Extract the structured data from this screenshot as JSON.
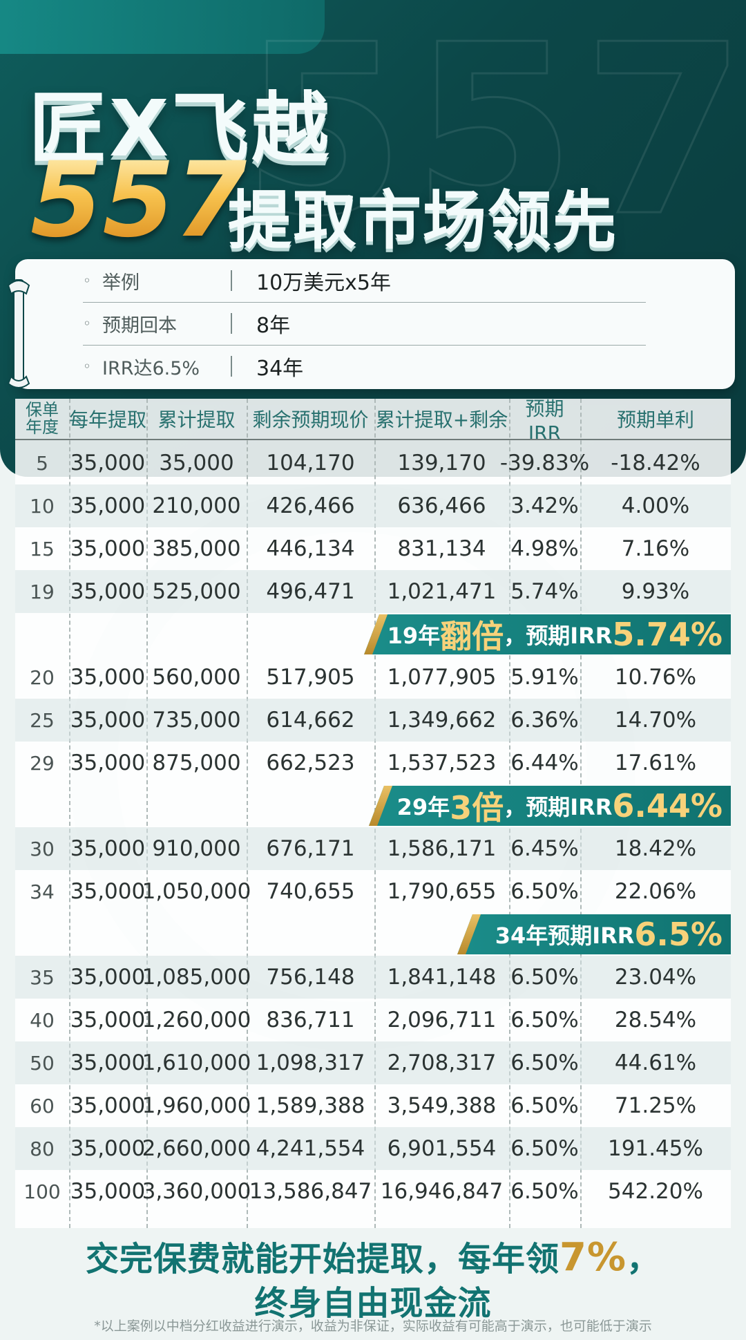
{
  "hero": {
    "bg_number": "557",
    "title_line1": "匠X飞越",
    "title_number": "557",
    "title_line2": "提取市场领先"
  },
  "info": [
    {
      "label": "举例",
      "value": "10万美元x5年"
    },
    {
      "label": "预期回本",
      "value": "8年"
    },
    {
      "label": "IRR达6.5%",
      "value": "34年"
    }
  ],
  "table": {
    "headers": [
      "保单\n年度",
      "每年提取",
      "累计提取",
      "剩余预期现价",
      "累计提取+剩余",
      "预期IRR",
      "预期单利"
    ],
    "header_year_top": "保单",
    "header_year_bottom": "年度",
    "rows": [
      [
        "5",
        "35,000",
        "35,000",
        "104,170",
        "139,170",
        "-39.83%",
        "-18.42%"
      ],
      [
        "10",
        "35,000",
        "210,000",
        "426,466",
        "636,466",
        "3.42%",
        "4.00%"
      ],
      [
        "15",
        "35,000",
        "385,000",
        "446,134",
        "831,134",
        "4.98%",
        "7.16%"
      ],
      [
        "19",
        "35,000",
        "525,000",
        "496,471",
        "1,021,471",
        "5.74%",
        "9.93%"
      ],
      [
        "20",
        "35,000",
        "560,000",
        "517,905",
        "1,077,905",
        "5.91%",
        "10.76%"
      ],
      [
        "25",
        "35,000",
        "735,000",
        "614,662",
        "1,349,662",
        "6.36%",
        "14.70%"
      ],
      [
        "29",
        "35,000",
        "875,000",
        "662,523",
        "1,537,523",
        "6.44%",
        "17.61%"
      ],
      [
        "30",
        "35,000",
        "910,000",
        "676,171",
        "1,586,171",
        "6.45%",
        "18.42%"
      ],
      [
        "34",
        "35,000",
        "1,050,000",
        "740,655",
        "1,790,655",
        "6.50%",
        "22.06%"
      ],
      [
        "35",
        "35,000",
        "1,085,000",
        "756,148",
        "1,841,148",
        "6.50%",
        "23.04%"
      ],
      [
        "40",
        "35,000",
        "1,260,000",
        "836,711",
        "2,096,711",
        "6.50%",
        "28.54%"
      ],
      [
        "50",
        "35,000",
        "1,610,000",
        "1,098,317",
        "2,708,317",
        "6.50%",
        "44.61%"
      ],
      [
        "60",
        "35,000",
        "1,960,000",
        "1,589,388",
        "3,549,388",
        "6.50%",
        "71.25%"
      ],
      [
        "80",
        "35,000",
        "2,660,000",
        "4,241,554",
        "6,901,554",
        "6.50%",
        "191.45%"
      ],
      [
        "100",
        "35,000",
        "3,360,000",
        "13,586,847",
        "16,946,847",
        "6.50%",
        "542.20%"
      ]
    ]
  },
  "banners": [
    {
      "prefix": "19年",
      "big": "翻倍",
      "mid": "，预期IRR",
      "big2": "5.74%"
    },
    {
      "prefix": "29年",
      "big": "3倍",
      "mid": "，预期IRR",
      "big2": "6.44%"
    },
    {
      "prefix": "34年预期IRR",
      "big": "",
      "mid": "",
      "big2": "6.5%"
    }
  ],
  "footer": {
    "line1_a": "交完保费就能开始提取，每年领",
    "line1_gold": "7%",
    "line1_b": "，",
    "line2": "终身自由现金流",
    "disclaimer": "*以上案例以中档分红收益进行演示，收益为非保证，实际收益有可能高于演示，也可能低于演示"
  },
  "colors": {
    "hero_bg": "#0c4748",
    "accent_teal": "#127371",
    "accent_gold": "#c8962f"
  }
}
